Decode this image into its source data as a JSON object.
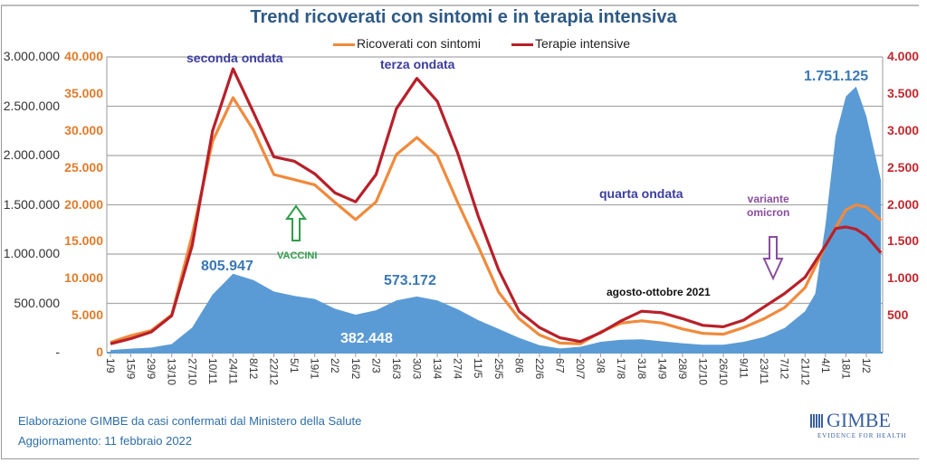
{
  "chart_data": {
    "type": "area+line",
    "title": "Trend ricoverati con sintomi e in terapia intensiva",
    "legend": {
      "position": "top",
      "items": [
        "Ricoverati con sintomi",
        "Terapie intensive"
      ]
    },
    "grid": true,
    "axes": {
      "y_left": {
        "ticks": [
          "-",
          "500.000",
          "1.000.000",
          "1.500.000",
          "2.000.000",
          "2.500.000",
          "3.000.000"
        ],
        "range": [
          0,
          3000000
        ]
      },
      "y_left_secondary": {
        "ticks": [
          "0",
          "5.000",
          "10.000",
          "15.000",
          "20.000",
          "25.000",
          "30.000",
          "35.000",
          "40.000"
        ],
        "range": [
          0,
          40000
        ]
      },
      "y_right": {
        "ticks": [
          "500",
          "1.000",
          "1.500",
          "2.000",
          "2.500",
          "3.000",
          "3.500",
          "4.000"
        ],
        "range": [
          0,
          4000
        ]
      },
      "x_tick_labels": [
        "1/9",
        "15/9",
        "29/9",
        "13/10",
        "27/10",
        "10/11",
        "24/11",
        "8/12",
        "22/12",
        "5/1",
        "19/1",
        "2/2",
        "16/2",
        "2/3",
        "16/3",
        "30/3",
        "13/4",
        "27/4",
        "11/5",
        "25/5",
        "8/6",
        "22/6",
        "6/7",
        "20/7",
        "3/8",
        "17/8",
        "31/8",
        "14/9",
        "28/9",
        "12/10",
        "26/10",
        "9/11",
        "23/11",
        "7/12",
        "21/12",
        "4/1",
        "18/1",
        "1/2"
      ],
      "x_range": [
        "2020-09-01",
        "2022-02-11"
      ]
    },
    "series": [
      {
        "axis": "y_left",
        "kind": "area",
        "color": "#5b9bd5",
        "points": [
          [
            "2020-09-01",
            27000
          ],
          [
            "2020-09-15",
            40000
          ],
          [
            "2020-09-29",
            51000
          ],
          [
            "2020-10-13",
            87000
          ],
          [
            "2020-10-27",
            255000
          ],
          [
            "2020-11-10",
            590000
          ],
          [
            "2020-11-24",
            800000
          ],
          [
            "2020-12-08",
            737000
          ],
          [
            "2020-12-22",
            620000
          ],
          [
            "2021-01-05",
            575000
          ],
          [
            "2021-01-19",
            545000
          ],
          [
            "2021-02-02",
            445000
          ],
          [
            "2021-02-16",
            385000
          ],
          [
            "2021-03-02",
            430000
          ],
          [
            "2021-03-16",
            530000
          ],
          [
            "2021-03-30",
            570000
          ],
          [
            "2021-04-13",
            530000
          ],
          [
            "2021-04-27",
            440000
          ],
          [
            "2021-05-11",
            330000
          ],
          [
            "2021-05-25",
            240000
          ],
          [
            "2021-06-08",
            150000
          ],
          [
            "2021-06-22",
            75000
          ],
          [
            "2021-07-06",
            42000
          ],
          [
            "2021-07-20",
            60000
          ],
          [
            "2021-08-03",
            110000
          ],
          [
            "2021-08-17",
            130000
          ],
          [
            "2021-08-31",
            135000
          ],
          [
            "2021-09-14",
            115000
          ],
          [
            "2021-09-28",
            95000
          ],
          [
            "2021-10-12",
            80000
          ],
          [
            "2021-10-26",
            80000
          ],
          [
            "2021-11-09",
            110000
          ],
          [
            "2021-11-23",
            160000
          ],
          [
            "2021-12-07",
            250000
          ],
          [
            "2021-12-21",
            420000
          ],
          [
            "2021-12-28",
            600000
          ],
          [
            "2022-01-04",
            1300000
          ],
          [
            "2022-01-11",
            2200000
          ],
          [
            "2022-01-18",
            2600000
          ],
          [
            "2022-01-25",
            2700000
          ],
          [
            "2022-02-01",
            2400000
          ],
          [
            "2022-02-11",
            1750000
          ]
        ]
      },
      {
        "name": "Ricoverati con sintomi",
        "axis": "y_left_secondary",
        "kind": "line",
        "color": "#f08a3c",
        "points": [
          [
            "2020-09-01",
            1400
          ],
          [
            "2020-09-15",
            2300
          ],
          [
            "2020-09-29",
            3000
          ],
          [
            "2020-10-13",
            5100
          ],
          [
            "2020-10-27",
            15900
          ],
          [
            "2020-11-10",
            28600
          ],
          [
            "2020-11-24",
            34500
          ],
          [
            "2020-12-08",
            30100
          ],
          [
            "2020-12-22",
            24100
          ],
          [
            "2021-01-05",
            23400
          ],
          [
            "2021-01-19",
            22700
          ],
          [
            "2021-02-02",
            20300
          ],
          [
            "2021-02-16",
            18000
          ],
          [
            "2021-03-02",
            20400
          ],
          [
            "2021-03-16",
            26800
          ],
          [
            "2021-03-30",
            29100
          ],
          [
            "2021-04-13",
            26600
          ],
          [
            "2021-04-27",
            20300
          ],
          [
            "2021-05-11",
            14400
          ],
          [
            "2021-05-25",
            8200
          ],
          [
            "2021-06-08",
            4600
          ],
          [
            "2021-06-22",
            2400
          ],
          [
            "2021-07-06",
            1300
          ],
          [
            "2021-07-20",
            1200
          ],
          [
            "2021-08-03",
            2800
          ],
          [
            "2021-08-17",
            4000
          ],
          [
            "2021-08-31",
            4300
          ],
          [
            "2021-09-14",
            4000
          ],
          [
            "2021-09-28",
            3200
          ],
          [
            "2021-10-12",
            2600
          ],
          [
            "2021-10-26",
            2500
          ],
          [
            "2021-11-09",
            3400
          ],
          [
            "2021-11-23",
            4600
          ],
          [
            "2021-12-07",
            6100
          ],
          [
            "2021-12-21",
            8800
          ],
          [
            "2022-01-04",
            14500
          ],
          [
            "2022-01-18",
            19300
          ],
          [
            "2022-01-25",
            20000
          ],
          [
            "2022-02-01",
            19700
          ],
          [
            "2022-02-11",
            17900
          ]
        ]
      },
      {
        "name": "Terapie intensive",
        "axis": "y_right",
        "kind": "line",
        "color": "#b8202a",
        "points": [
          [
            "2020-09-01",
            120
          ],
          [
            "2020-09-15",
            190
          ],
          [
            "2020-09-29",
            280
          ],
          [
            "2020-10-13",
            500
          ],
          [
            "2020-10-27",
            1450
          ],
          [
            "2020-11-10",
            3000
          ],
          [
            "2020-11-24",
            3840
          ],
          [
            "2020-12-08",
            3250
          ],
          [
            "2020-12-22",
            2650
          ],
          [
            "2021-01-05",
            2590
          ],
          [
            "2021-01-19",
            2420
          ],
          [
            "2021-02-02",
            2160
          ],
          [
            "2021-02-16",
            2040
          ],
          [
            "2021-03-02",
            2410
          ],
          [
            "2021-03-16",
            3300
          ],
          [
            "2021-03-30",
            3710
          ],
          [
            "2021-04-13",
            3400
          ],
          [
            "2021-04-27",
            2700
          ],
          [
            "2021-05-11",
            1850
          ],
          [
            "2021-05-25",
            1120
          ],
          [
            "2021-06-08",
            560
          ],
          [
            "2021-06-22",
            340
          ],
          [
            "2021-07-06",
            200
          ],
          [
            "2021-07-20",
            150
          ],
          [
            "2021-08-03",
            270
          ],
          [
            "2021-08-17",
            430
          ],
          [
            "2021-08-31",
            560
          ],
          [
            "2021-09-14",
            540
          ],
          [
            "2021-09-28",
            460
          ],
          [
            "2021-10-12",
            370
          ],
          [
            "2021-10-26",
            350
          ],
          [
            "2021-11-09",
            440
          ],
          [
            "2021-11-23",
            620
          ],
          [
            "2021-12-07",
            800
          ],
          [
            "2021-12-21",
            1020
          ],
          [
            "2022-01-04",
            1450
          ],
          [
            "2022-01-11",
            1680
          ],
          [
            "2022-01-18",
            1700
          ],
          [
            "2022-01-25",
            1670
          ],
          [
            "2022-02-01",
            1580
          ],
          [
            "2022-02-11",
            1350
          ]
        ]
      }
    ],
    "annotations": {
      "seconda": "seconda ondata",
      "terza": "terza ondata",
      "quarta": "quarta ondata",
      "omicron_1": "variante",
      "omicron_2": "omicron",
      "vaccini": "VACCINI",
      "agosto": "agosto-ottobre 2021",
      "peak1": "805.947",
      "peak2": "573.172",
      "trough": "382.448",
      "peak3": "1.751.125"
    }
  },
  "footer": {
    "source": "Elaborazione GIMBE da casi confermati dal Ministero della Salute",
    "updated": "Aggiornamento: 11 febbraio 2022"
  },
  "logo": {
    "name": "GIMBE",
    "tagline": "EVIDENCE FOR HEALTH"
  },
  "colors": {
    "cases": "#5b9bd5",
    "ricoverati": "#f08a3c",
    "terapie": "#b8202a",
    "title": "#2e5a86",
    "annotation": "#3b3d9e",
    "vaccini": "#2e9e4a",
    "omicron": "#8a4d9e"
  }
}
